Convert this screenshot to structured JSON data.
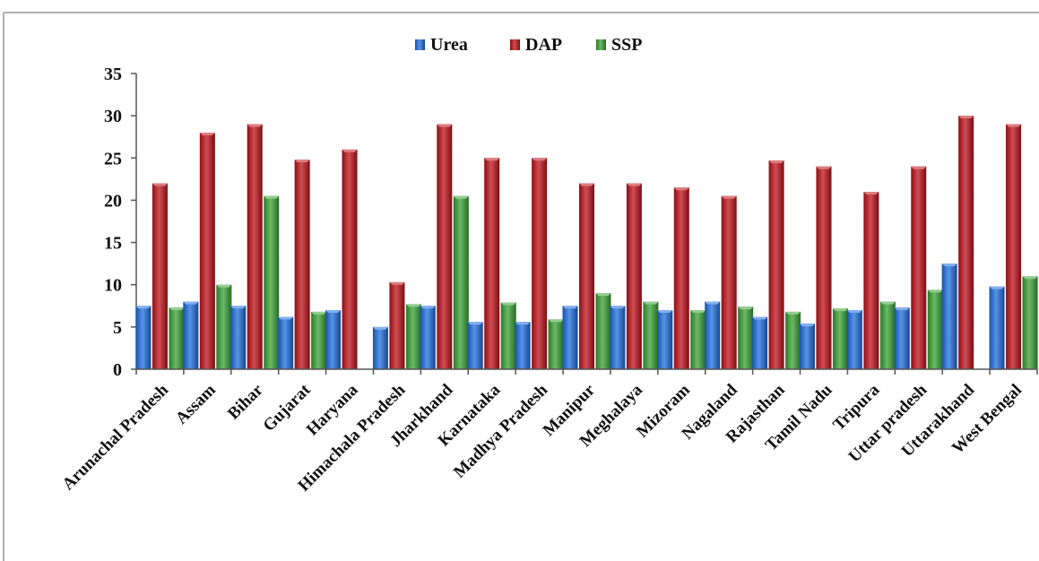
{
  "chart_data": {
    "type": "bar",
    "title": "",
    "xlabel": "",
    "ylabel": "",
    "ylim": [
      0,
      35
    ],
    "yticks": [
      0,
      5,
      10,
      15,
      20,
      25,
      30,
      35
    ],
    "grid": false,
    "legend_position": "top-center",
    "categories": [
      "Arunachal Pradesh",
      "Assam",
      "Bihar",
      "Gujarat",
      "Haryana",
      "Himachala Pradesh",
      "Jharkhand",
      "Karnataka",
      "Madhya Pradesh",
      "Manipur",
      "Meghalaya",
      "Mizoram",
      "Nagaland",
      "Rajasthan",
      "Tamil Nadu",
      "Tripura",
      "Uttar pradesh",
      "Uttarakhand",
      "West Bengal"
    ],
    "series": [
      {
        "name": "Urea",
        "color": "#1f6fe0",
        "values": [
          7.5,
          8,
          7.5,
          6.2,
          7,
          5,
          7.5,
          5.6,
          5.6,
          7.5,
          7.5,
          7,
          8,
          6.2,
          5.4,
          7,
          7.3,
          12.5,
          9.8
        ]
      },
      {
        "name": "DAP",
        "color": "#c0121a",
        "values": [
          22,
          28,
          29,
          24.8,
          26,
          10.3,
          29,
          25,
          25,
          22,
          22,
          21.5,
          20.5,
          24.7,
          24,
          21,
          24,
          30,
          29
        ]
      },
      {
        "name": "SSP",
        "color": "#3aa335",
        "values": [
          7.3,
          10,
          20.5,
          6.8,
          0,
          7.7,
          20.5,
          7.9,
          5.9,
          9,
          8,
          7,
          7.4,
          6.8,
          7.2,
          8,
          9.4,
          0,
          11
        ]
      }
    ]
  }
}
